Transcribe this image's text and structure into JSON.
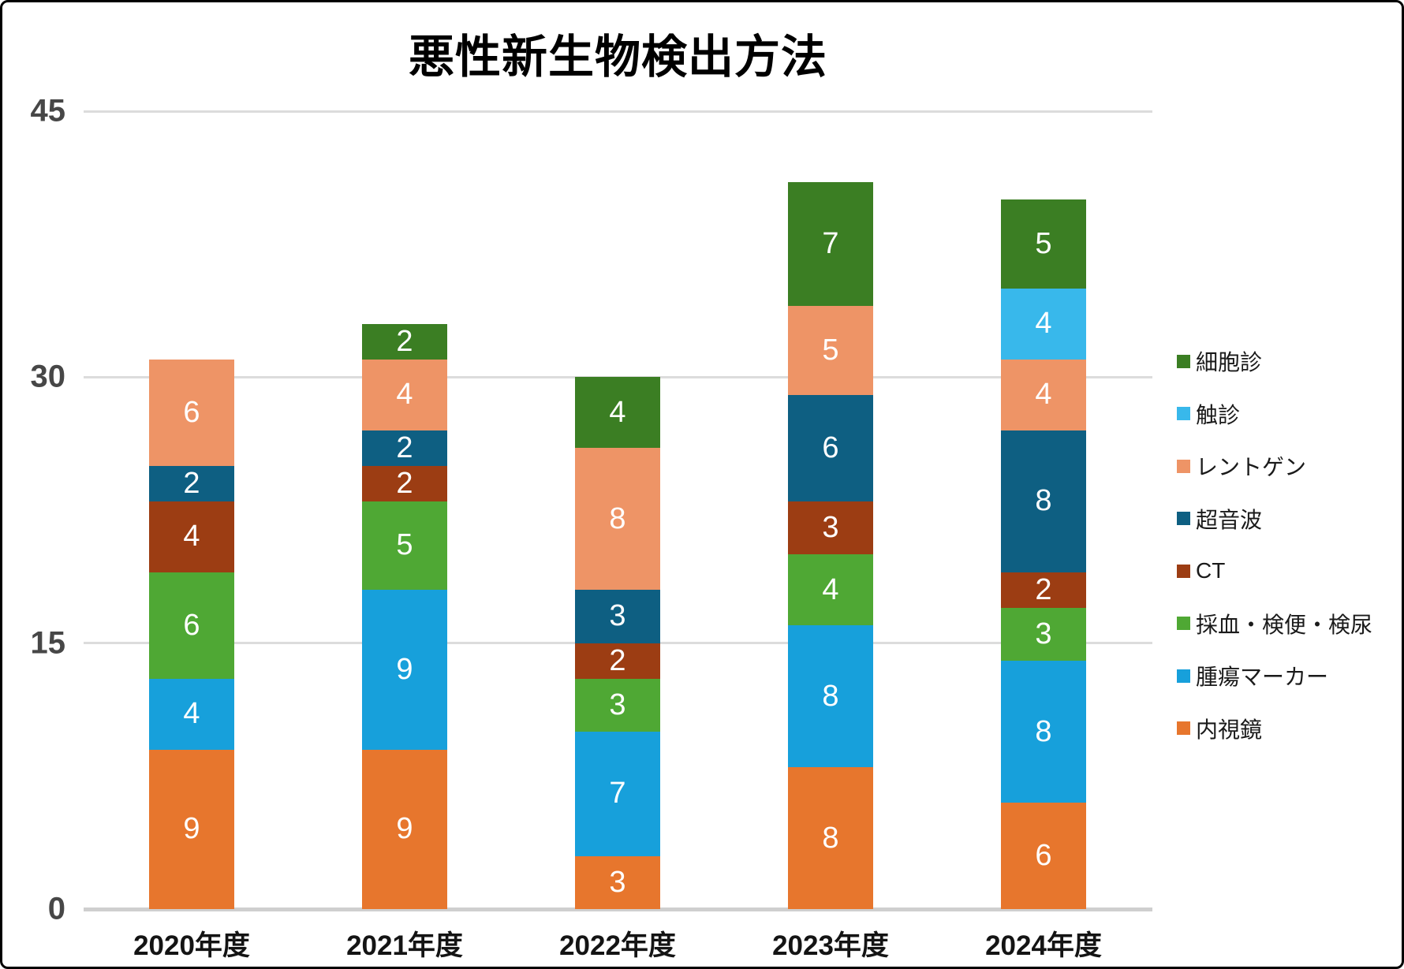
{
  "chart_data": {
    "type": "bar",
    "stacked": true,
    "title": "悪性新生物検出方法",
    "categories": [
      "2020年度",
      "2021年度",
      "2022年度",
      "2023年度",
      "2024年度"
    ],
    "series": [
      {
        "name": "内視鏡",
        "color": "#E7762D",
        "values": [
          9,
          9,
          3,
          8,
          6
        ]
      },
      {
        "name": "腫瘍マーカー",
        "color": "#17A0DB",
        "values": [
          4,
          9,
          7,
          8,
          8
        ]
      },
      {
        "name": "採血・検便・検尿",
        "color": "#4FA834",
        "values": [
          6,
          5,
          3,
          4,
          3
        ]
      },
      {
        "name": "CT",
        "color": "#9C3D13",
        "values": [
          4,
          2,
          2,
          3,
          2
        ]
      },
      {
        "name": "超音波",
        "color": "#0E5F82",
        "values": [
          2,
          2,
          3,
          6,
          8
        ]
      },
      {
        "name": "レントゲン",
        "color": "#EE9466",
        "values": [
          6,
          4,
          8,
          5,
          4
        ]
      },
      {
        "name": "触診",
        "color": "#38B8EB",
        "values": [
          0,
          0,
          0,
          0,
          4
        ]
      },
      {
        "name": "細胞診",
        "color": "#3B7E23",
        "values": [
          0,
          2,
          4,
          7,
          5
        ]
      }
    ],
    "totals": [
      31,
      33,
      30,
      41,
      40
    ],
    "ylim": [
      0,
      45
    ],
    "yticks": [
      0,
      15,
      30,
      45
    ],
    "grid": true,
    "legend_position": "right",
    "legend_order": [
      "細胞診",
      "触診",
      "レントゲン",
      "超音波",
      "CT",
      "採血・検便・検尿",
      "腫瘍マーカー",
      "内視鏡"
    ],
    "bar_label_color": "#FFFFFF"
  }
}
